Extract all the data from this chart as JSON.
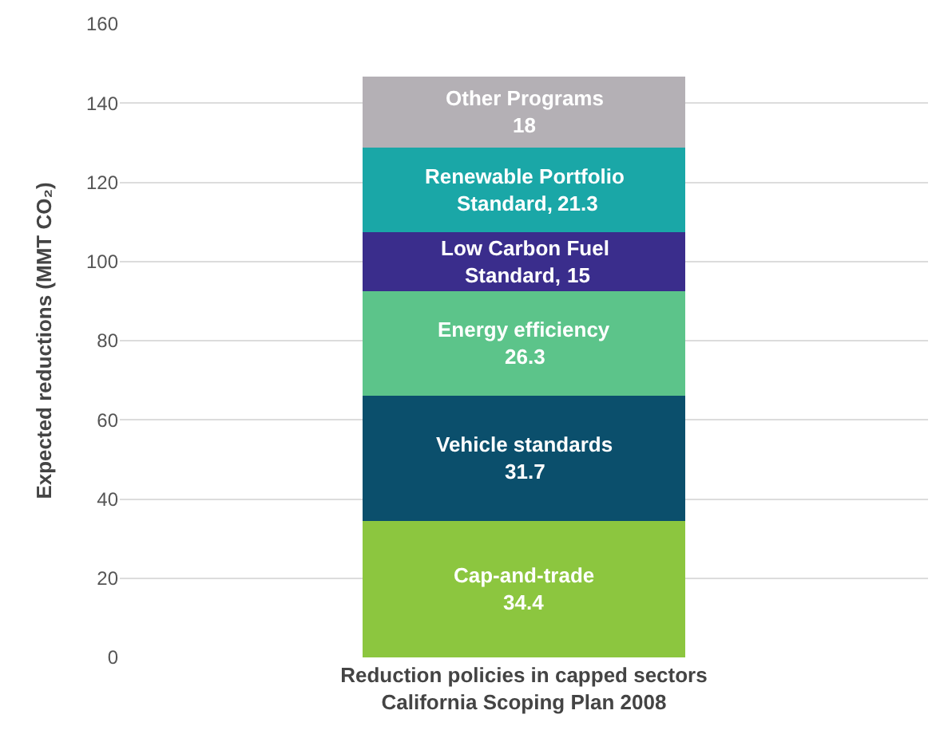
{
  "chart_data": {
    "type": "bar",
    "stacked": true,
    "categories": [
      null
    ],
    "xlabel": "Reduction policies in capped sectors\nCalifornia Scoping Plan 2008",
    "ylabel": "Expected reductions (MMT CO₂)",
    "ylim": [
      0,
      160
    ],
    "yticks": [
      0,
      20,
      40,
      60,
      80,
      100,
      120,
      140,
      160
    ],
    "grid": "y",
    "legend": false,
    "data_labels": true,
    "series": [
      {
        "name": "Cap-and-trade",
        "color": "#8cc63f",
        "values": [
          34.4
        ]
      },
      {
        "name": "Vehicle standards",
        "color": "#0b4f6c",
        "values": [
          31.7
        ]
      },
      {
        "name": "Energy efficiency",
        "color": "#5cc48a",
        "values": [
          26.3
        ]
      },
      {
        "name": "Low Carbon Fuel Standard,",
        "color": "#3a2d8c",
        "values": [
          15
        ]
      },
      {
        "name": "Renewable Portfolio Standard,",
        "color": "#1aa7a7",
        "values": [
          21.3
        ]
      },
      {
        "name": "Other Programs",
        "color": "#b4b0b5",
        "values": [
          18
        ]
      }
    ]
  }
}
